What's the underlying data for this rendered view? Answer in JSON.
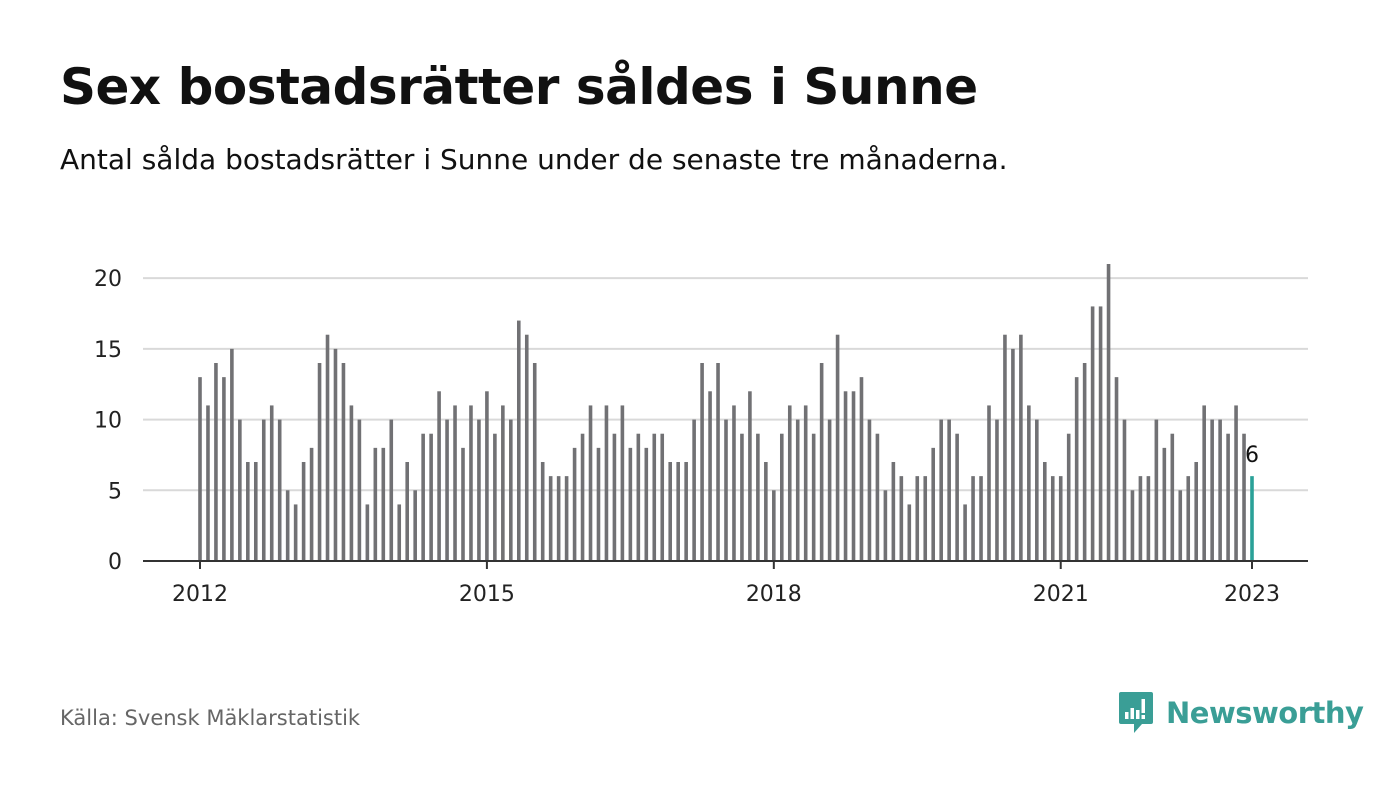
{
  "header": {
    "title": "Sex bostadsrätter såldes i Sunne",
    "subtitle": "Antal sålda bostadsrätter i Sunne under de senaste tre månaderna."
  },
  "footer": {
    "source": "Källa: Svensk Mäklarstatistik",
    "brand": "Newsworthy"
  },
  "colors": {
    "bar": "#717174",
    "highlight": "#2aa198",
    "grid": "#d9d9d9",
    "axis": "#333333",
    "brand": "#3a9e96"
  },
  "chart_data": {
    "type": "bar",
    "x_start": "2012-01",
    "values": [
      13,
      11,
      14,
      13,
      15,
      10,
      7,
      7,
      10,
      11,
      10,
      5,
      4,
      7,
      8,
      14,
      16,
      15,
      14,
      11,
      10,
      4,
      8,
      8,
      10,
      4,
      7,
      5,
      9,
      9,
      12,
      10,
      11,
      8,
      11,
      10,
      12,
      9,
      11,
      10,
      17,
      16,
      14,
      7,
      6,
      6,
      6,
      8,
      9,
      11,
      8,
      11,
      9,
      11,
      8,
      9,
      8,
      9,
      9,
      7,
      7,
      7,
      10,
      14,
      12,
      14,
      10,
      11,
      9,
      12,
      9,
      7,
      5,
      9,
      11,
      10,
      11,
      9,
      14,
      10,
      16,
      12,
      12,
      13,
      10,
      9,
      5,
      7,
      6,
      4,
      6,
      6,
      8,
      10,
      10,
      9,
      4,
      6,
      6,
      11,
      10,
      16,
      15,
      16,
      11,
      10,
      7,
      6,
      6,
      9,
      13,
      14,
      18,
      18,
      21,
      13,
      10,
      5,
      6,
      6,
      10,
      8,
      9,
      5,
      6,
      7,
      11,
      10,
      10,
      9,
      11,
      9,
      6
    ],
    "highlight_last": true,
    "last_label": "6",
    "xticks": [
      {
        "label": "2012",
        "index": 0
      },
      {
        "label": "2015",
        "index": 36
      },
      {
        "label": "2018",
        "index": 72
      },
      {
        "label": "2021",
        "index": 108
      },
      {
        "label": "2023",
        "index": 132
      }
    ],
    "yticks": [
      0,
      5,
      10,
      15,
      20
    ],
    "ylim": [
      0,
      21
    ],
    "grid": true
  }
}
